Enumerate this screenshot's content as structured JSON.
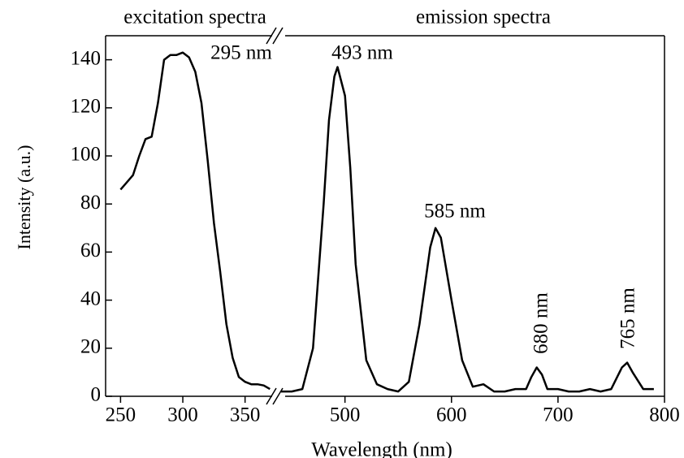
{
  "chart_data": [
    {
      "type": "line",
      "title": "excitation spectra",
      "ylabel": "Intensity (a.u.)",
      "color": "#000000",
      "x": [
        250,
        255,
        260,
        265,
        270,
        275,
        280,
        285,
        290,
        295,
        300,
        305,
        310,
        315,
        320,
        325,
        330,
        335,
        340,
        345,
        350,
        355,
        360,
        365,
        370
      ],
      "values": [
        86,
        89,
        92,
        100,
        107,
        108,
        122,
        140,
        142,
        142,
        143,
        141,
        135,
        122,
        98,
        72,
        52,
        30,
        16,
        8,
        6,
        5,
        5,
        4.5,
        3
      ],
      "xlim": [
        238,
        375
      ],
      "xticks": [
        250,
        300,
        350
      ],
      "ylim": [
        0,
        150
      ],
      "yticks": [
        0,
        20,
        40,
        60,
        80,
        100,
        120,
        140
      ],
      "annotations": [
        "295 nm"
      ]
    },
    {
      "type": "line",
      "title": "emission spectra",
      "xlabel": "Wavelength (nm)",
      "color": "#000000",
      "x": [
        440,
        450,
        460,
        470,
        480,
        485,
        490,
        493,
        500,
        505,
        510,
        520,
        530,
        540,
        550,
        560,
        570,
        580,
        585,
        590,
        600,
        610,
        620,
        630,
        640,
        650,
        660,
        670,
        675,
        680,
        685,
        690,
        700,
        710,
        720,
        730,
        740,
        750,
        760,
        765,
        770,
        780,
        790
      ],
      "values": [
        2,
        2,
        3,
        20,
        80,
        115,
        133,
        137,
        125,
        95,
        55,
        15,
        5,
        3,
        2,
        6,
        30,
        62,
        70,
        66,
        40,
        15,
        4,
        5,
        2,
        2,
        3,
        3,
        8,
        12,
        9,
        3,
        3,
        2,
        2,
        3,
        2,
        3,
        12,
        14,
        10,
        3,
        3
      ],
      "xlim": [
        440,
        800
      ],
      "xticks": [
        500,
        600,
        700,
        800
      ],
      "annotations": [
        "493 nm",
        "585 nm",
        "680 nm",
        "765 nm"
      ]
    }
  ]
}
